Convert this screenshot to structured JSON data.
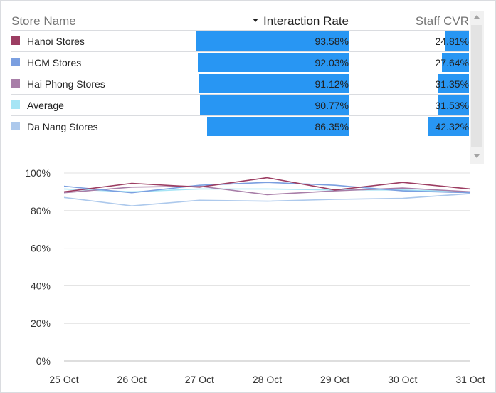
{
  "table": {
    "headers": {
      "name": "Store Name",
      "rate": "Interaction Rate",
      "cvr": "Staff CVR"
    },
    "sorted_by": "Interaction Rate",
    "sort_direction": "descending",
    "rows": [
      {
        "name": "Hanoi Stores",
        "color": "#9c3d62",
        "rate": 93.58,
        "rate_label": "93.58%",
        "cvr": 24.81,
        "cvr_label": "24.81%"
      },
      {
        "name": "HCM Stores",
        "color": "#7b9fe0",
        "rate": 92.03,
        "rate_label": "92.03%",
        "cvr": 27.64,
        "cvr_label": "27.64%"
      },
      {
        "name": "Hai Phong Stores",
        "color": "#a87ea8",
        "rate": 91.12,
        "rate_label": "91.12%",
        "cvr": 31.35,
        "cvr_label": "31.35%"
      },
      {
        "name": "Average",
        "color": "#a6e5f5",
        "rate": 90.77,
        "rate_label": "90.77%",
        "cvr": 31.53,
        "cvr_label": "31.53%"
      },
      {
        "name": "Da Nang Stores",
        "color": "#adc9ec",
        "rate": 86.35,
        "rate_label": "86.35%",
        "cvr": 42.32,
        "cvr_label": "42.32%"
      }
    ],
    "bar_color": "#2896f3",
    "rate_bar_max": 100,
    "cvr_bar_max": 100
  },
  "chart_data": {
    "type": "line",
    "x": [
      "25 Oct",
      "26 Oct",
      "27 Oct",
      "28 Oct",
      "29 Oct",
      "30 Oct",
      "31 Oct"
    ],
    "ylim": [
      0,
      100
    ],
    "yticks": [
      0,
      20,
      40,
      60,
      80,
      100
    ],
    "ytick_labels": [
      "0%",
      "20%",
      "40%",
      "60%",
      "80%",
      "100%"
    ],
    "grid": true,
    "series": [
      {
        "name": "Hanoi Stores",
        "color": "#9c3d62",
        "values": [
          90.0,
          94.5,
          92.5,
          97.5,
          91.0,
          95.0,
          91.5
        ]
      },
      {
        "name": "HCM Stores",
        "color": "#7b9fe0",
        "values": [
          93.0,
          89.5,
          93.5,
          95.0,
          93.5,
          90.5,
          89.5
        ]
      },
      {
        "name": "Hai Phong Stores",
        "color": "#a87ea8",
        "values": [
          89.5,
          92.5,
          93.0,
          88.5,
          90.5,
          92.0,
          90.0
        ]
      },
      {
        "name": "Average",
        "color": "#a6e5f5",
        "values": [
          91.5,
          90.0,
          91.5,
          91.5,
          91.0,
          91.0,
          90.0
        ]
      },
      {
        "name": "Da Nang Stores",
        "color": "#adc9ec",
        "values": [
          87.0,
          82.5,
          85.5,
          85.0,
          86.0,
          86.5,
          89.0
        ]
      }
    ]
  }
}
